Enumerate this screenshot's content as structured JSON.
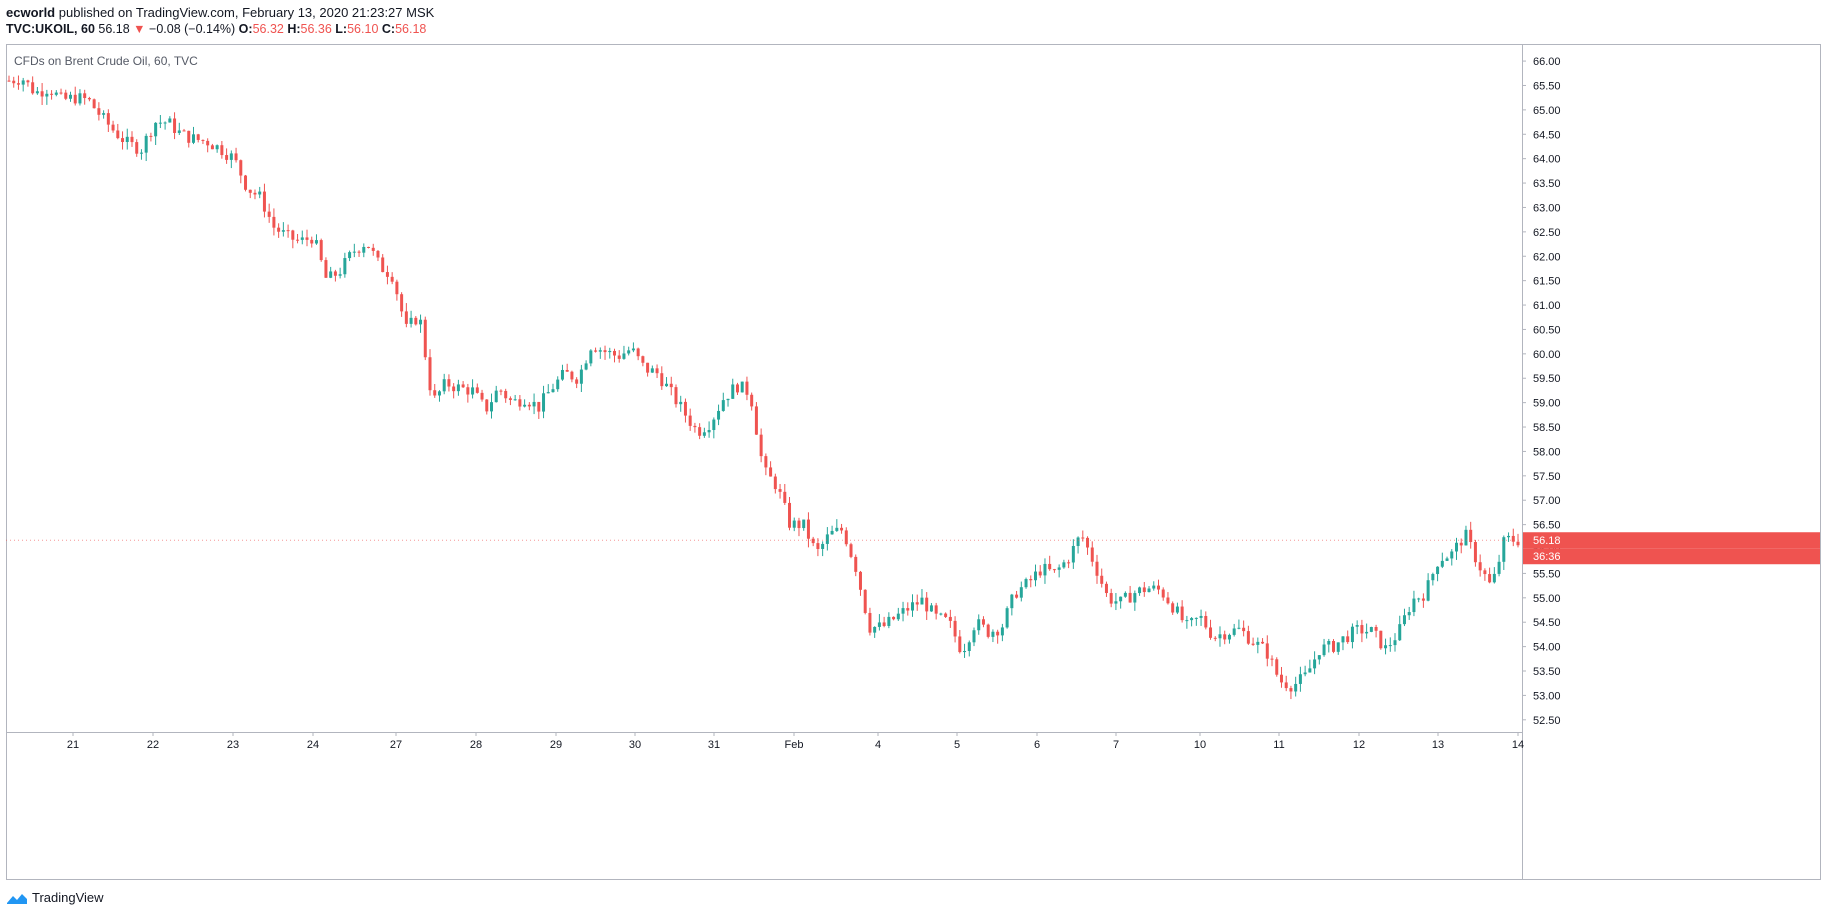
{
  "header": {
    "author": "ecworld",
    "published": "published on TradingView.com, February 13, 2020 21:23:27 MSK",
    "symbol": "TVC:UKOIL, 60",
    "last": "56.18",
    "change_arrow": "▼",
    "change": "−0.08 (−0.14%)",
    "o_label": "O:",
    "o_value": "56.32",
    "h_label": "H:",
    "h_value": "56.36",
    "l_label": "L:",
    "l_value": "56.10",
    "c_label": "C:",
    "c_value": "56.18"
  },
  "footer": {
    "brand": "TradingView",
    "logo_icon": "tradingview-logo-icon"
  },
  "colors": {
    "up": "#26a69a",
    "down": "#ef5350",
    "label_bg": "#ef5350"
  },
  "chart_data": {
    "type": "candlestick",
    "title": "CFDs on Brent Crude Oil, 60, TVC",
    "interval": "60",
    "ylim": [
      52.25,
      66.35
    ],
    "y_ticks": [
      "52.50",
      "53.00",
      "53.50",
      "54.00",
      "54.50",
      "55.00",
      "55.50",
      "56.00",
      "56.50",
      "57.00",
      "57.50",
      "58.00",
      "58.50",
      "59.00",
      "59.50",
      "60.00",
      "60.50",
      "61.00",
      "61.50",
      "62.00",
      "62.50",
      "63.00",
      "63.50",
      "64.00",
      "64.50",
      "65.00",
      "65.50",
      "66.00"
    ],
    "x_ticks": [
      "21",
      "22",
      "23",
      "24",
      "27",
      "28",
      "29",
      "30",
      "31",
      "Feb",
      "4",
      "5",
      "6",
      "7",
      "10",
      "11",
      "12",
      "13",
      "14"
    ],
    "last_price_label": "56.18",
    "countdown_label": "36:36",
    "close_path": [
      [
        "20-00",
        65.6
      ],
      [
        "20-03",
        65.65
      ],
      [
        "20-06",
        65.35
      ],
      [
        "20-09",
        65.45
      ],
      [
        "20-12",
        65.2
      ],
      [
        "20-16",
        65.25
      ],
      [
        "21-00",
        65.2
      ],
      [
        "21-04",
        64.85
      ],
      [
        "21-07",
        64.55
      ],
      [
        "21-11",
        64.3
      ],
      [
        "21-15",
        64.2
      ],
      [
        "21-18",
        64.75
      ],
      [
        "22-00",
        64.75
      ],
      [
        "22-04",
        64.5
      ],
      [
        "22-08",
        64.4
      ],
      [
        "22-12",
        64.35
      ],
      [
        "22-16",
        64.2
      ],
      [
        "22-20",
        64.0
      ],
      [
        "23-00",
        63.4
      ],
      [
        "23-03",
        63.2
      ],
      [
        "23-06",
        62.6
      ],
      [
        "23-10",
        62.4
      ],
      [
        "23-13",
        62.3
      ],
      [
        "23-17",
        62.4
      ],
      [
        "24-00",
        61.5
      ],
      [
        "24-04",
        61.7
      ],
      [
        "24-08",
        62.1
      ],
      [
        "24-12",
        62.3
      ],
      [
        "24-15",
        61.8
      ],
      [
        "24-20",
        61.6
      ],
      [
        "27-00",
        60.5
      ],
      [
        "27-03",
        60.8
      ],
      [
        "27-05",
        59.0
      ],
      [
        "27-09",
        59.4
      ],
      [
        "27-13",
        59.3
      ],
      [
        "27-17",
        59.25
      ],
      [
        "28-00",
        58.85
      ],
      [
        "28-04",
        59.3
      ],
      [
        "28-08",
        59.0
      ],
      [
        "28-12",
        59.1
      ],
      [
        "28-16",
        58.9
      ],
      [
        "28-20",
        59.3
      ],
      [
        "29-00",
        59.6
      ],
      [
        "29-03",
        59.5
      ],
      [
        "29-06",
        60.2
      ],
      [
        "29-10",
        60.05
      ],
      [
        "29-14",
        59.95
      ],
      [
        "29-18",
        60.1
      ],
      [
        "30-00",
        59.7
      ],
      [
        "30-04",
        59.6
      ],
      [
        "30-08",
        59.2
      ],
      [
        "30-12",
        58.8
      ],
      [
        "30-16",
        58.4
      ],
      [
        "30-20",
        58.6
      ],
      [
        "31-00",
        59.1
      ],
      [
        "31-03",
        59.35
      ],
      [
        "31-06",
        59.2
      ],
      [
        "31-10",
        57.6
      ],
      [
        "31-14",
        57.3
      ],
      [
        "31-18",
        56.5
      ],
      [
        "F3-00",
        56.5
      ],
      [
        "F3-04",
        55.9
      ],
      [
        "F3-08",
        56.3
      ],
      [
        "F3-12",
        56.4
      ],
      [
        "F3-16",
        55.6
      ],
      [
        "F3-20",
        54.4
      ],
      [
        "04-00",
        54.4
      ],
      [
        "04-04",
        54.6
      ],
      [
        "04-08",
        54.8
      ],
      [
        "04-12",
        54.95
      ],
      [
        "04-16",
        54.6
      ],
      [
        "04-20",
        54.5
      ],
      [
        "05-00",
        53.9
      ],
      [
        "05-04",
        54.5
      ],
      [
        "05-08",
        54.3
      ],
      [
        "05-12",
        54.4
      ],
      [
        "05-16",
        55.1
      ],
      [
        "05-20",
        55.3
      ],
      [
        "06-00",
        55.6
      ],
      [
        "06-04",
        55.5
      ],
      [
        "06-08",
        55.8
      ],
      [
        "06-12",
        56.3
      ],
      [
        "06-16",
        55.7
      ],
      [
        "06-20",
        55.0
      ],
      [
        "07-00",
        54.9
      ],
      [
        "07-04",
        55.1
      ],
      [
        "07-08",
        55.2
      ],
      [
        "07-12",
        55.15
      ],
      [
        "07-16",
        54.8
      ],
      [
        "07-20",
        54.4
      ],
      [
        "10-00",
        54.6
      ],
      [
        "10-04",
        54.2
      ],
      [
        "10-08",
        54.3
      ],
      [
        "10-12",
        54.35
      ],
      [
        "10-16",
        54.1
      ],
      [
        "10-20",
        53.9
      ],
      [
        "11-00",
        53.3
      ],
      [
        "11-03",
        53.2
      ],
      [
        "11-06",
        53.4
      ],
      [
        "11-10",
        53.95
      ],
      [
        "11-14",
        54.0
      ],
      [
        "11-18",
        54.2
      ],
      [
        "12-00",
        54.35
      ],
      [
        "12-04",
        54.3
      ],
      [
        "12-08",
        53.95
      ],
      [
        "12-12",
        54.3
      ],
      [
        "12-16",
        54.95
      ],
      [
        "12-20",
        55.1
      ],
      [
        "13-00",
        55.8
      ],
      [
        "13-04",
        55.9
      ],
      [
        "13-08",
        56.3
      ],
      [
        "13-12",
        55.7
      ],
      [
        "13-16",
        55.2
      ],
      [
        "13-20",
        56.2
      ],
      [
        "14-00",
        56.18
      ]
    ]
  }
}
